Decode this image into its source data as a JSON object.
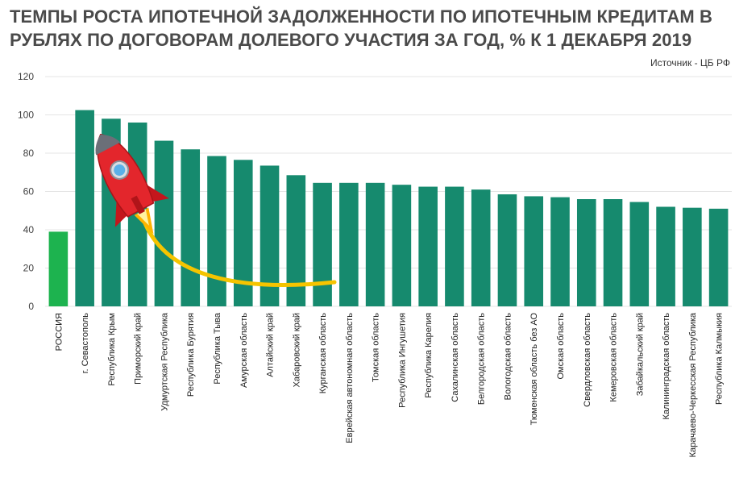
{
  "header": {
    "title": "ТЕМПЫ РОСТА ИПОТЕЧНОЙ ЗАДОЛЖЕННОСТИ ПО ИПОТЕЧНЫМ КРЕДИТАМ В РУБЛЯХ ПО ДОГОВОРАМ ДОЛЕВОГО УЧАСТИЯ ЗА ГОД, % К 1 ДЕКАБРЯ 2019",
    "source": "Источник - ЦБ РФ"
  },
  "colors": {
    "bar": "#168a6e",
    "highlight": "#1db34f",
    "grid": "#e4e4e4",
    "trail": "#f5c400"
  },
  "decoration": {
    "icon": "rocket-icon"
  },
  "chart_data": {
    "type": "bar",
    "title": "ТЕМПЫ РОСТА ИПОТЕЧНОЙ ЗАДОЛЖЕННОСТИ ПО ИПОТЕЧНЫМ КРЕДИТАМ В РУБЛЯХ ПО ДОГОВОРАМ ДОЛЕВОГО УЧАСТИЯ ЗА ГОД, % К 1 ДЕКАБРЯ 2019",
    "xlabel": "",
    "ylabel": "",
    "ylim": [
      0,
      120
    ],
    "yticks": [
      0,
      20,
      40,
      60,
      80,
      100,
      120
    ],
    "grid": true,
    "legend": "none",
    "highlight_category": "РОССИЯ",
    "categories": [
      "РОССИЯ",
      "г. Севастополь",
      "Республика Крым",
      "Приморский край",
      "Удмуртская Республика",
      "Республика Бурятия",
      "Республика Тыва",
      "Амурская область",
      "Алтайский край",
      "Хабаровский край",
      "Курганская область",
      "Еврейская автономная область",
      "Томская область",
      "Республика Ингушетия",
      "Республика Карелия",
      "Сахалинская область",
      "Белгородская область",
      "Вологодская область",
      "Тюменская область без АО",
      "Омская область",
      "Свердловская область",
      "Кемеровская область",
      "Забайкальский край",
      "Калининградская область",
      "Карачаево-Черкесская Республика",
      "Республика Калмыкия"
    ],
    "values": [
      39,
      102.5,
      98,
      96,
      86.5,
      82,
      78.5,
      76.5,
      73.5,
      68.5,
      64.5,
      64.5,
      64.5,
      63.5,
      62.5,
      62.5,
      61,
      58.5,
      57.5,
      57,
      56,
      56,
      54.5,
      52,
      51.5,
      51
    ]
  }
}
